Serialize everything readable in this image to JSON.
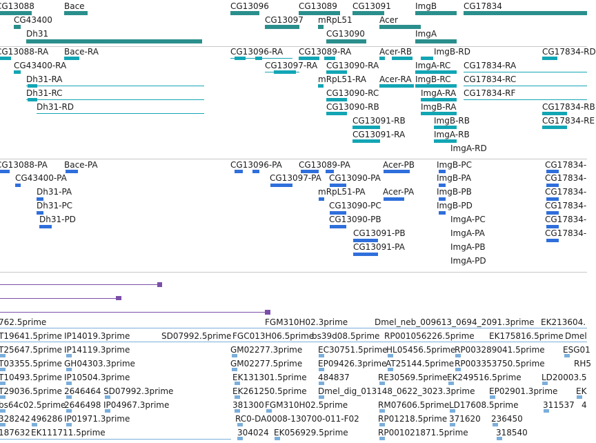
{
  "colors": {
    "gene": "#2a8f8c",
    "transcript": "#12a5b4",
    "protein": "#2f6fdb",
    "track4": "#7b4fa8",
    "est": "#7aaedb",
    "separator": "#c8c8c8",
    "text": "#1a1a1a"
  },
  "tracks": {
    "genes": {
      "labels": [
        "CG13088",
        "Bace",
        "CG13096",
        "CG13089",
        "CG13091",
        "ImgB",
        "CG17834",
        "CG43400",
        "CG13097",
        "mRpL51",
        "Acer",
        "Dh31",
        "CG13090",
        "ImgA"
      ]
    },
    "transcripts": {
      "labels": [
        "CG13088-RA",
        "Bace-RA",
        "CG13096-RA",
        "CG13089-RA",
        "Acer-RB",
        "ImgB-RD",
        "CG17834-RD",
        "CG43400-RA",
        "CG13097-RA",
        "CG13090-RA",
        "ImgA-RC",
        "CG17834-RA",
        "Dh31-RA",
        "mRpL51-RA",
        "Acer-RA",
        "ImgB-RC",
        "CG17834-RC",
        "Dh31-RC",
        "CG13090-RC",
        "ImgA-RA",
        "CG17834-RF",
        "Dh31-RD",
        "CG13090-RB",
        "ImgB-RA",
        "CG17834-RB",
        "CG13091-RB",
        "ImgB-RB",
        "CG17834-RE",
        "CG13091-RA",
        "ImgA-RB",
        "ImgA-RD"
      ]
    },
    "proteins": {
      "labels": [
        "CG13088-PA",
        "Bace-PA",
        "CG13096-PA",
        "CG13089-PA",
        "Acer-PB",
        "ImgB-PC",
        "CG17834-",
        "CG43400-PA",
        "CG13097-PA",
        "CG13090-PA",
        "ImgB-PA",
        "CG17834-",
        "Dh31-PA",
        "mRpL51-PA",
        "Acer-PA",
        "ImgB-PB",
        "CG17834-",
        "Dh31-PC",
        "CG13090-PC",
        "ImgB-PD",
        "CG17834-",
        "Dh31-PD",
        "CG13090-PB",
        "ImgA-PC",
        "CG17834-",
        "CG13091-PB",
        "ImgA-PA",
        "CG17834-",
        "CG13091-PA",
        "ImgA-PB",
        "ImgA-PD"
      ]
    },
    "ests": {
      "labels": [
        "762.5prime",
        "FGM310H02.3prime",
        "Dmel_neb_009613_0694_2091.3prime",
        "EK213604.",
        "T19641.5prime",
        "IP14019.3prime",
        "SD07992.5prime",
        "FGC013H06.5prime",
        "bs39d08.5prime",
        "RP001056226.5prime",
        "EK175816.5prime",
        "Dmel",
        "T25647.5prime",
        "IP14119.3prime",
        "GM02277.3prime",
        "EC30751.5prime",
        "HL05456.5prime",
        "RP003289041.5prime",
        "ESG01",
        "T03355.5prime",
        "GH04303.3prime",
        "GM02277.5prime",
        "EP09426.3prime",
        "AT25144.5prime",
        "RP003353750.5prime",
        "RH5",
        "T10493.5prime",
        "IP10504.3prime",
        "EK131301.5prime",
        "484837",
        "RE30569.5prime",
        "EK249516.5prime",
        "LD20003.5",
        "T29036.5prime",
        "2646464",
        "SD07992.3prime",
        "EK261250.5prime",
        "Dmel_dig_013148_0622_3023.3prime",
        "EP02901.3prime",
        "EK",
        "bs64c02.5prime",
        "2646498",
        "IP04967.3prime",
        "381300",
        "FGM310H02.5prime",
        "RM07606.5prime",
        "LD17608.5prime",
        "311537",
        "4",
        "328242",
        "496286",
        "IP01971.3prime",
        "RC0-DA0008-130700-011-F02",
        "RP01218.5prime",
        "371620",
        "236450",
        "187632",
        "EK111711.5prime",
        "304024",
        "EK056929.5prime",
        "RP001021871.5prime",
        "318540"
      ]
    }
  }
}
